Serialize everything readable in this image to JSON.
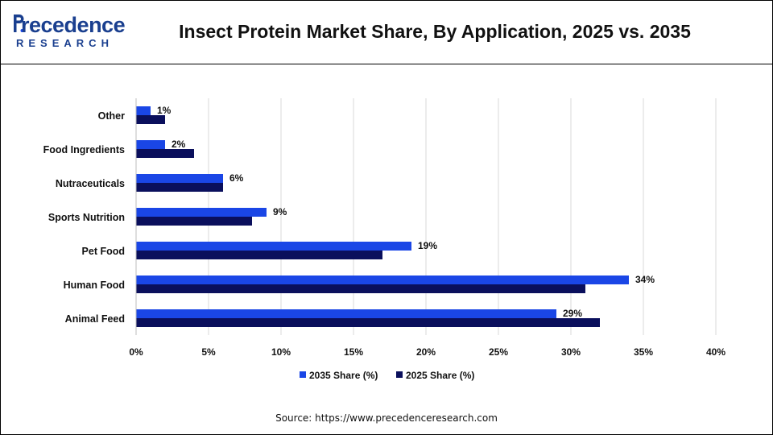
{
  "header": {
    "logo_word": "recedence",
    "logo_sub": "RESEARCH",
    "title": "Insect Protein Market Share, By Application, 2025 vs. 2035"
  },
  "footer": {
    "source": "Source: https://www.precedenceresearch.com"
  },
  "colors": {
    "series_2035": "#1a46e6",
    "series_2025": "#0a0f5c",
    "brand": "#1a3f8f",
    "grid": "#d9d9d9"
  },
  "chart_data": {
    "type": "bar",
    "orientation": "horizontal",
    "title": "Insect Protein Market Share, By Application, 2025 vs. 2035",
    "categories": [
      "Other",
      "Food Ingredients",
      "Nutraceuticals",
      "Sports Nutrition",
      "Pet Food",
      "Human Food",
      "Animal Feed"
    ],
    "series": [
      {
        "name": "2035 Share (%)",
        "values": [
          1,
          2,
          6,
          9,
          19,
          34,
          29
        ]
      },
      {
        "name": "2025 Share (%)",
        "values": [
          2,
          4,
          6,
          8,
          17,
          31,
          32
        ]
      }
    ],
    "data_labels": [
      "1%",
      "2%",
      "6%",
      "9%",
      "19%",
      "34%",
      "29%"
    ],
    "xlim": [
      0,
      40
    ],
    "xticks": [
      "0%",
      "5%",
      "10%",
      "15%",
      "20%",
      "25%",
      "30%",
      "35%",
      "40%"
    ],
    "grid": "vertical",
    "legend": "bottom"
  }
}
